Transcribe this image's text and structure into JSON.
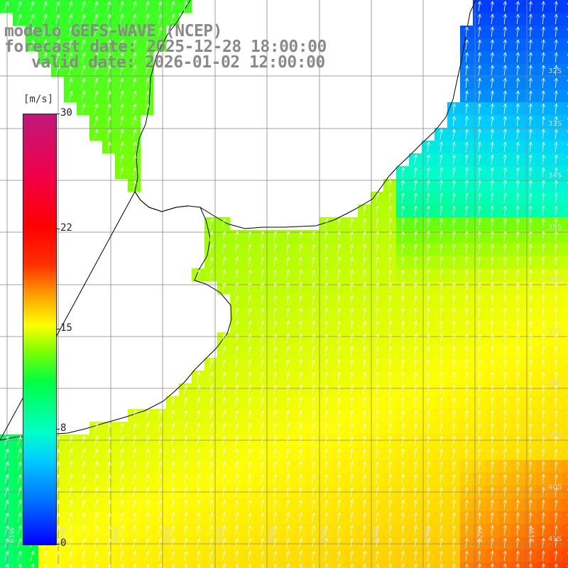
{
  "title": {
    "line1": "modelo GEFS-WAVE (NCEP)",
    "line2": "forecast date: 2025-12-28 18:00:00",
    "line3": "valid date: 2026-01-02 12:00:00"
  },
  "colorbar": {
    "unit": "[m/s]",
    "ticks": [
      "30",
      "22",
      "15",
      "8",
      "0"
    ],
    "tick_values": [
      30,
      22,
      15,
      8,
      0
    ],
    "range": [
      0,
      30
    ],
    "colors": [
      "#0000ff",
      "#00d0ff",
      "#00ff40",
      "#ffff00",
      "#ff0000",
      "#c0187a"
    ]
  },
  "map": {
    "land_color": "#ffffff",
    "coast_color": "#000000",
    "grid_color": "#888888",
    "lat_labels": [
      "32S",
      "33S",
      "34S",
      "35S",
      "36S",
      "37S",
      "38S",
      "39S",
      "40S",
      "41S"
    ],
    "lon_labels": [
      "61W",
      "60W",
      "59W",
      "58W",
      "57W",
      "56W",
      "55W",
      "54W",
      "53W",
      "52W",
      "51W"
    ],
    "lat_values": [
      -32,
      -33,
      -34,
      -35,
      -36,
      -37,
      -38,
      -39,
      -40,
      -41
    ],
    "lon_values": [
      -61,
      -60,
      -59,
      -58,
      -57,
      -56,
      -55,
      -54,
      -53,
      -52,
      -51
    ]
  }
}
